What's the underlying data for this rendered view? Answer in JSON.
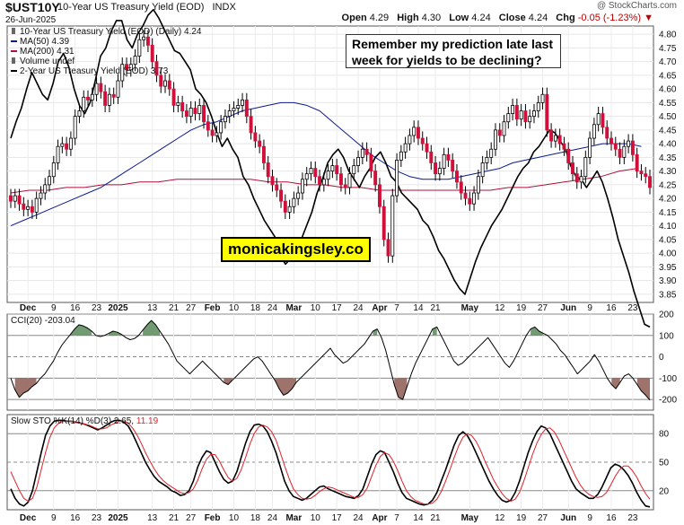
{
  "header": {
    "symbol": "$UST10Y",
    "name": "10-Year US Treasury Yield (EOD)",
    "exchange": "INDX",
    "date": "26-Jun-2025",
    "credit": "@ StockCharts.com",
    "open_label": "Open",
    "open": "4.29",
    "high_label": "High",
    "high": "4.30",
    "low_label": "Low",
    "low": "4.24",
    "close_label": "Close",
    "close": "4.24",
    "chg_label": "Chg",
    "chg": "-0.05 (-1.23%)"
  },
  "annotations": {
    "callout_line1": "Remember my prediction late last",
    "callout_line2": "week for yields to be declining?",
    "brand": "monicakingsley.co"
  },
  "colors": {
    "up": "#ffffff",
    "down": "#d0103a",
    "candle_outline": "#000000",
    "ma50": "#0b1a8c",
    "ma200": "#b0103a",
    "two_year": "#000000",
    "cci_pos": "#5a8a5a",
    "cci_neg": "#8c5a52",
    "sto_k": "#000000",
    "sto_d": "#e0202a"
  },
  "chart_data": [
    {
      "type": "candlestick",
      "title": "10-Year US Treasury Yield (EOD) (Daily) 4.24",
      "legend": [
        {
          "label": "10-Year US Treasury Yield (EOD) (Daily) 4.24",
          "icon": "candle-icon"
        },
        {
          "label": "MA(50) 4.39",
          "color": "#0b1a8c"
        },
        {
          "label": "MA(200) 4.31",
          "color": "#b0103a"
        },
        {
          "label": "Volume undef",
          "icon": "volume-icon"
        },
        {
          "label": "2-Year US Treasury Yield (EOD) 3.73",
          "color": "#000000"
        }
      ],
      "ylim": [
        3.82,
        4.83
      ],
      "y_ticks": [
        "4.80",
        "4.75",
        "4.70",
        "4.65",
        "4.60",
        "4.55",
        "4.50",
        "4.45",
        "4.40",
        "4.35",
        "4.30",
        "4.25",
        "4.20",
        "4.15",
        "4.10",
        "4.05",
        "4.00",
        "3.95",
        "3.90",
        "3.85"
      ],
      "x_tick_labels": [
        {
          "label": "Dec",
          "i": 4,
          "bold": true
        },
        {
          "label": "9",
          "i": 10
        },
        {
          "label": "16",
          "i": 15
        },
        {
          "label": "23",
          "i": 20
        },
        {
          "label": "2025",
          "i": 25,
          "bold": true
        },
        {
          "label": "13",
          "i": 33
        },
        {
          "label": "21",
          "i": 38
        },
        {
          "label": "27",
          "i": 42
        },
        {
          "label": "Feb",
          "i": 47,
          "bold": true
        },
        {
          "label": "10",
          "i": 52
        },
        {
          "label": "18",
          "i": 57
        },
        {
          "label": "24",
          "i": 61
        },
        {
          "label": "Mar",
          "i": 66,
          "bold": true
        },
        {
          "label": "10",
          "i": 71
        },
        {
          "label": "17",
          "i": 76
        },
        {
          "label": "24",
          "i": 81
        },
        {
          "label": "Apr",
          "i": 86,
          "bold": true
        },
        {
          "label": "7",
          "i": 90
        },
        {
          "label": "14",
          "i": 95
        },
        {
          "label": "21",
          "i": 99
        },
        {
          "label": "May",
          "i": 107,
          "bold": true
        },
        {
          "label": "12",
          "i": 114
        },
        {
          "label": "19",
          "i": 119
        },
        {
          "label": "27",
          "i": 124
        },
        {
          "label": "Jun",
          "i": 130,
          "bold": true
        },
        {
          "label": "9",
          "i": 135
        },
        {
          "label": "16",
          "i": 140
        },
        {
          "label": "23",
          "i": 145
        }
      ],
      "close": [
        4.19,
        4.21,
        4.18,
        4.16,
        4.17,
        4.15,
        4.2,
        4.22,
        4.25,
        4.28,
        4.33,
        4.39,
        4.4,
        4.38,
        4.42,
        4.5,
        4.52,
        4.57,
        4.56,
        4.58,
        4.62,
        4.59,
        4.54,
        4.58,
        4.57,
        4.63,
        4.69,
        4.67,
        4.69,
        4.72,
        4.78,
        4.79,
        4.76,
        4.7,
        4.65,
        4.61,
        4.63,
        4.6,
        4.54,
        4.55,
        4.52,
        4.5,
        4.53,
        4.51,
        4.54,
        4.48,
        4.45,
        4.43,
        4.44,
        4.48,
        4.5,
        4.52,
        4.53,
        4.54,
        4.56,
        4.5,
        4.44,
        4.41,
        4.39,
        4.33,
        4.28,
        4.25,
        4.23,
        4.19,
        4.15,
        4.17,
        4.2,
        4.22,
        4.27,
        4.29,
        4.31,
        4.28,
        4.25,
        4.27,
        4.3,
        4.32,
        4.29,
        4.25,
        4.24,
        4.29,
        4.32,
        4.35,
        4.38,
        4.36,
        4.3,
        4.25,
        4.17,
        4.05,
        3.99,
        4.21,
        4.34,
        4.37,
        4.4,
        4.43,
        4.46,
        4.42,
        4.4,
        4.37,
        4.33,
        4.29,
        4.31,
        4.36,
        4.34,
        4.3,
        4.26,
        4.22,
        4.2,
        4.18,
        4.22,
        4.28,
        4.33,
        4.35,
        4.38,
        4.45,
        4.43,
        4.48,
        4.51,
        4.54,
        4.49,
        4.52,
        4.48,
        4.5,
        4.52,
        4.55,
        4.58,
        4.45,
        4.41,
        4.43,
        4.4,
        4.38,
        4.33,
        4.29,
        4.26,
        4.28,
        4.35,
        4.42,
        4.47,
        4.51,
        4.46,
        4.42,
        4.4,
        4.38,
        4.35,
        4.39,
        4.41,
        4.36,
        4.3,
        4.29,
        4.28,
        4.24
      ],
      "ma50": [
        4.1,
        4.12,
        4.14,
        4.16,
        4.18,
        4.2,
        4.22,
        4.24,
        4.27,
        4.3,
        4.33,
        4.36,
        4.39,
        4.42,
        4.45,
        4.47,
        4.48,
        4.5,
        4.52,
        4.53,
        4.54,
        4.55,
        4.55,
        4.54,
        4.52,
        4.48,
        4.44,
        4.4,
        4.36,
        4.33,
        4.3,
        4.28,
        4.27,
        4.27,
        4.27,
        4.28,
        4.29,
        4.3,
        4.31,
        4.33,
        4.34,
        4.35,
        4.36,
        4.37,
        4.38,
        4.39,
        4.4,
        4.4,
        4.4,
        4.39
      ],
      "ma50_start": 0,
      "ma50_step": 3,
      "ma200": [
        4.22,
        4.23,
        4.23,
        4.24,
        4.24,
        4.25,
        4.25,
        4.26,
        4.26,
        4.27,
        4.27,
        4.27,
        4.27,
        4.27,
        4.26,
        4.26,
        4.25,
        4.25,
        4.24,
        4.24,
        4.23,
        4.23,
        4.23,
        4.23,
        4.23,
        4.23,
        4.23,
        4.24,
        4.24,
        4.25,
        4.26,
        4.27,
        4.28,
        4.3,
        4.31
      ],
      "ma200_start": 0,
      "ma200_step": 4.3,
      "two_year": [
        4.42,
        4.48,
        4.53,
        4.6,
        4.66,
        4.62,
        4.58,
        4.56,
        4.62,
        4.7,
        4.73,
        4.68,
        4.6,
        4.54,
        4.51,
        4.55,
        4.63,
        4.72,
        4.75,
        4.81,
        4.85,
        4.85,
        4.78,
        4.75,
        4.8,
        4.83,
        4.87,
        4.89,
        4.86,
        4.82,
        4.78,
        4.74,
        4.73,
        4.7,
        4.67,
        4.6,
        4.58,
        4.55,
        4.5,
        4.44,
        4.39,
        4.42,
        4.38,
        4.35,
        4.28,
        4.25,
        4.2,
        4.16,
        4.12,
        4.09,
        4.06,
        3.99,
        3.96,
        3.98,
        4.0,
        4.05,
        4.1,
        4.15,
        4.22,
        4.27,
        4.33,
        4.36,
        4.38,
        4.35,
        4.3,
        4.27,
        4.24,
        4.28,
        4.31,
        4.35,
        4.37,
        4.33,
        4.28,
        4.26,
        4.22,
        4.2,
        4.18,
        4.16,
        4.12,
        4.1,
        4.06,
        4.01,
        3.98,
        3.94,
        3.9,
        3.87,
        3.85,
        3.91,
        3.97,
        4.02,
        4.06,
        4.1,
        4.13,
        4.16,
        4.2,
        4.24,
        4.28,
        4.31,
        4.33,
        4.37,
        4.39,
        4.42,
        4.45,
        4.44,
        4.41,
        4.38,
        4.32,
        4.28,
        4.27,
        4.24,
        4.27,
        4.3,
        4.26,
        4.2,
        4.13,
        4.05,
        3.99,
        3.93,
        3.86,
        3.8,
        3.74,
        3.73
      ]
    },
    {
      "type": "line",
      "title": "CCI(20) -203.04",
      "ylim": [
        -250,
        200
      ],
      "y_ticks": [
        "200",
        "100",
        "0",
        "-100",
        "-200"
      ],
      "values": [
        -100,
        -155,
        -190,
        -170,
        -160,
        -140,
        -125,
        -100,
        -80,
        -50,
        -20,
        20,
        55,
        80,
        105,
        130,
        150,
        145,
        135,
        120,
        100,
        95,
        100,
        110,
        120,
        115,
        105,
        90,
        80,
        85,
        100,
        125,
        150,
        170,
        150,
        120,
        90,
        60,
        20,
        -20,
        -40,
        -60,
        -80,
        -60,
        -40,
        -20,
        -40,
        -60,
        -80,
        -100,
        -120,
        -130,
        -110,
        -90,
        -70,
        -50,
        -30,
        -10,
        0,
        -20,
        -50,
        -80,
        -110,
        -150,
        -180,
        -170,
        -150,
        -120,
        -100,
        -80,
        -60,
        -40,
        -20,
        0,
        20,
        40,
        10,
        -10,
        -30,
        -20,
        0,
        20,
        40,
        60,
        90,
        120,
        130,
        90,
        30,
        -50,
        -130,
        -190,
        -200,
        -140,
        -80,
        -30,
        10,
        50,
        90,
        130,
        140,
        100,
        60,
        20,
        -20,
        -40,
        -30,
        -10,
        10,
        30,
        50,
        70,
        90,
        60,
        30,
        0,
        -30,
        -50,
        -20,
        20,
        60,
        100,
        130,
        140,
        120,
        110,
        100,
        80,
        60,
        30,
        10,
        -20,
        -50,
        -80,
        -60,
        -40,
        -20,
        10,
        -20,
        -60,
        -100,
        -130,
        -150,
        -120,
        -90,
        -80,
        -100,
        -130,
        -160,
        -180,
        -203
      ]
    },
    {
      "type": "line",
      "title": "Slow STO %K(14) %D(3) 2.65, 11.19",
      "ylim": [
        0,
        100
      ],
      "y_ticks": [
        "80",
        "50",
        "20"
      ],
      "series": [
        {
          "name": "%K",
          "value_label": "2.65",
          "color": "#000000",
          "values": [
            22,
            12,
            6,
            4,
            8,
            20,
            40,
            60,
            78,
            88,
            93,
            94,
            94,
            93,
            93,
            92,
            91,
            90,
            88,
            86,
            84,
            86,
            89,
            92,
            94,
            94,
            92,
            88,
            80,
            70,
            60,
            50,
            42,
            35,
            30,
            27,
            24,
            20,
            18,
            15,
            16,
            20,
            30,
            45,
            55,
            62,
            60,
            50,
            40,
            32,
            28,
            30,
            40,
            55,
            70,
            82,
            89,
            90,
            88,
            82,
            72,
            60,
            45,
            30,
            20,
            14,
            12,
            10,
            12,
            16,
            20,
            24,
            25,
            22,
            20,
            18,
            16,
            14,
            13,
            12,
            15,
            22,
            35,
            48,
            58,
            62,
            60,
            50,
            40,
            28,
            18,
            12,
            10,
            8,
            6,
            5,
            6,
            10,
            18,
            30,
            42,
            55,
            68,
            78,
            82,
            78,
            70,
            60,
            50,
            40,
            30,
            22,
            15,
            10,
            8,
            10,
            18,
            30,
            45,
            60,
            72,
            82,
            88,
            86,
            80,
            70,
            60,
            50,
            40,
            30,
            22,
            18,
            15,
            12,
            12,
            16,
            24,
            34,
            44,
            48,
            46,
            42,
            36,
            28,
            18,
            10,
            4,
            3
          ]
        },
        {
          "name": "%D",
          "value_label": "11.19",
          "color": "#e0202a",
          "values": [
            40,
            30,
            20,
            12,
            9,
            12,
            24,
            42,
            60,
            76,
            86,
            91,
            93,
            93,
            93,
            92,
            91,
            90,
            89,
            87,
            85,
            85,
            86,
            89,
            91,
            93,
            93,
            91,
            86,
            79,
            70,
            60,
            51,
            43,
            36,
            31,
            27,
            24,
            21,
            18,
            17,
            18,
            22,
            31,
            43,
            53,
            58,
            58,
            51,
            42,
            34,
            30,
            33,
            42,
            55,
            69,
            80,
            87,
            89,
            87,
            82,
            73,
            60,
            46,
            33,
            22,
            16,
            12,
            11,
            12,
            15,
            19,
            22,
            24,
            23,
            21,
            19,
            17,
            15,
            13,
            13,
            16,
            23,
            35,
            47,
            56,
            60,
            58,
            51,
            41,
            30,
            20,
            14,
            10,
            8,
            6,
            6,
            7,
            11,
            19,
            30,
            42,
            55,
            67,
            76,
            80,
            78,
            72,
            63,
            52,
            42,
            32,
            24,
            17,
            12,
            9,
            11,
            18,
            30,
            44,
            58,
            70,
            79,
            85,
            86,
            82,
            74,
            64,
            54,
            44,
            34,
            26,
            20,
            16,
            14,
            13,
            14,
            18,
            26,
            35,
            42,
            46,
            46,
            41,
            34,
            25,
            17,
            11
          ]
        }
      ]
    }
  ]
}
